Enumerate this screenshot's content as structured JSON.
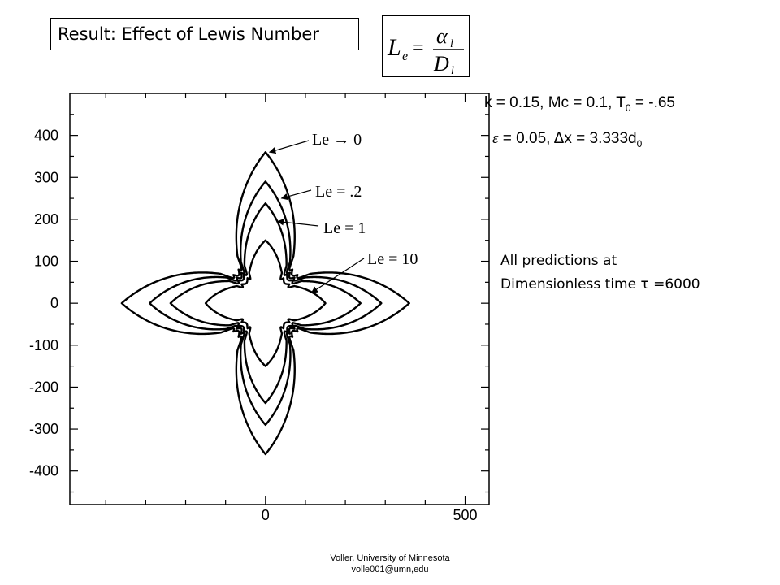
{
  "slide": {
    "title": "Result: Effect of Lewis Number",
    "formula": {
      "lhs_main": "L",
      "lhs_sub": "e",
      "eq": "=",
      "num_main": "α",
      "num_sub": "l",
      "den_main": "D",
      "den_sub": "l"
    },
    "params_line1": {
      "a": "k = 0.15, Mc = 0.1, T",
      "sub": "0",
      "b": " = -.65"
    },
    "params_line2": {
      "eps": "ε",
      "a": " = 0.05, ",
      "delta": "Δ",
      "b": "x = 3.333d",
      "sub": "0"
    },
    "note_line1": "All predictions at",
    "note_line2": "Dimensionless time τ =6000",
    "footer_line1": "Voller, University of Minnesota",
    "footer_line2": "volle001@umn,edu"
  },
  "chart_data": {
    "type": "line",
    "title": "",
    "xlabel": "",
    "ylabel": "",
    "xlim": [
      -490,
      560
    ],
    "ylim": [
      -480,
      500
    ],
    "x_ticks": [
      0,
      500
    ],
    "y_ticks": [
      400,
      300,
      200,
      100,
      0,
      -100,
      -200,
      -300,
      -400
    ],
    "y_tick_labels": [
      "400",
      "300",
      "200",
      "100",
      "0",
      "-100",
      "-200",
      "-300",
      "-400"
    ],
    "x_tick_labels": [
      "0",
      "500"
    ],
    "grid": false,
    "series": [
      {
        "name": "Le → 0",
        "tip": 360,
        "neck_radius": 105,
        "neck_angle_deg": 40,
        "neck_depth": 0.4
      },
      {
        "name": "Le = .2",
        "tip": 290,
        "neck_radius": 95,
        "neck_angle_deg": 40,
        "neck_depth": 0.4
      },
      {
        "name": "Le = 1",
        "tip": 238,
        "neck_radius": 88,
        "neck_angle_deg": 38,
        "neck_depth": 0.4
      },
      {
        "name": "Le = 10",
        "tip": 150,
        "neck_radius": 75,
        "neck_angle_deg": 37,
        "neck_depth": 0.4
      }
    ],
    "annotations": [
      {
        "text": "Le → 0",
        "points_to": [
          10,
          360
        ]
      },
      {
        "text": "Le = .2",
        "points_to": [
          40,
          250
        ]
      },
      {
        "text": "Le = 1",
        "points_to": [
          30,
          195
        ]
      },
      {
        "text": "Le = 10",
        "points_to": [
          115,
          25
        ]
      }
    ]
  }
}
